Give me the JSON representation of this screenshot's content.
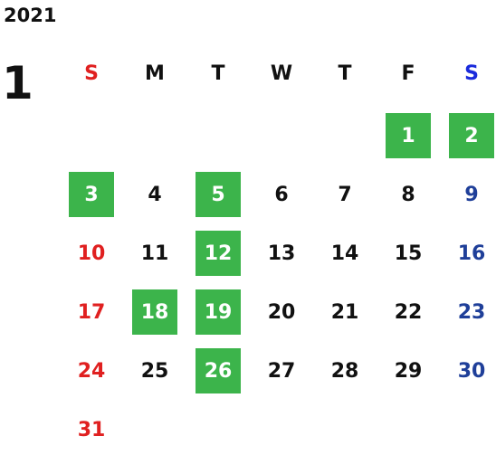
{
  "year": "2021",
  "month": "1",
  "weekdays": [
    "S",
    "M",
    "T",
    "W",
    "T",
    "F",
    "S"
  ],
  "colors": {
    "highlight": "#3cb44b",
    "sunday": "#e02020",
    "saturday": "#1f3f99",
    "saturday_header": "#1a2bdc"
  },
  "weeks": [
    [
      null,
      null,
      null,
      null,
      null,
      {
        "day": "1",
        "hl": true
      },
      {
        "day": "2",
        "hl": true
      }
    ],
    [
      {
        "day": "3",
        "hl": true
      },
      {
        "day": "4"
      },
      {
        "day": "5",
        "hl": true
      },
      {
        "day": "6"
      },
      {
        "day": "7"
      },
      {
        "day": "8"
      },
      {
        "day": "9"
      }
    ],
    [
      {
        "day": "10"
      },
      {
        "day": "11"
      },
      {
        "day": "12",
        "hl": true
      },
      {
        "day": "13"
      },
      {
        "day": "14"
      },
      {
        "day": "15"
      },
      {
        "day": "16"
      }
    ],
    [
      {
        "day": "17"
      },
      {
        "day": "18",
        "hl": true
      },
      {
        "day": "19",
        "hl": true
      },
      {
        "day": "20"
      },
      {
        "day": "21"
      },
      {
        "day": "22"
      },
      {
        "day": "23"
      }
    ],
    [
      {
        "day": "24"
      },
      {
        "day": "25"
      },
      {
        "day": "26",
        "hl": true
      },
      {
        "day": "27"
      },
      {
        "day": "28"
      },
      {
        "day": "29"
      },
      {
        "day": "30"
      }
    ],
    [
      {
        "day": "31"
      },
      null,
      null,
      null,
      null,
      null,
      null
    ]
  ]
}
